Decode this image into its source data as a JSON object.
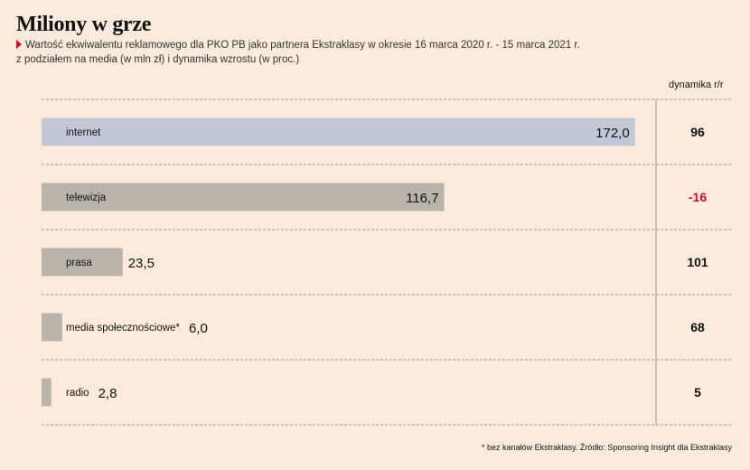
{
  "title": "Miliony w grze",
  "subtitle_line1": "Wartość ekwiwalentu reklamowego dla PKO PB jako partnera Ekstraklasy w okresie 16 marca 2020 r. - 15 marca 2021 r.",
  "subtitle_line2": "z podziałem na media (w mln zł) i dynamika wzrostu (w proc.)",
  "dynamics_header": "dynamika r/r",
  "source": "* bez kanałów Ekstraklasy. Źródło: Sponsoring Insight dla Ekstraklasy",
  "colors": {
    "highlight_bar": "#c2c8d8",
    "bar": "#b8b4aa",
    "negative": "#c8102e",
    "background": "#fcebdc",
    "arrow": "#d0101b"
  },
  "chart_data": {
    "type": "bar",
    "orientation": "horizontal",
    "categories": [
      "internet",
      "telewizja",
      "prasa",
      "media społecznościowe*",
      "radio"
    ],
    "values": [
      172.0,
      116.7,
      23.5,
      6.0,
      2.8
    ],
    "value_labels": [
      "172,0",
      "116,7",
      "23,5",
      "6,0",
      "2,8"
    ],
    "dynamics": [
      96,
      -16,
      101,
      68,
      5
    ],
    "dynamics_labels": [
      "96",
      "-16",
      "101",
      "68",
      "5"
    ],
    "highlight_index": 0
  }
}
